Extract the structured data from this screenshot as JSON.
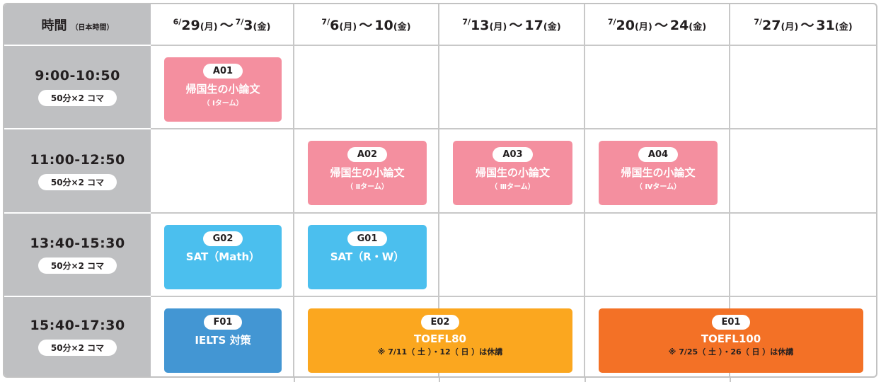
{
  "header": {
    "time_label": "時間",
    "time_note": "（日本時間）",
    "weeks": [
      {
        "m1": "6/",
        "d1": "29",
        "w1": "(月)",
        "sep": "～",
        "m2": "7/",
        "d2": "3",
        "w2": "(金)"
      },
      {
        "m1": "7/",
        "d1": "6",
        "w1": "(月)",
        "sep": "～",
        "m2": "",
        "d2": "10",
        "w2": "(金)"
      },
      {
        "m1": "7/",
        "d1": "13",
        "w1": "(月)",
        "sep": "～",
        "m2": "",
        "d2": "17",
        "w2": "(金)"
      },
      {
        "m1": "7/",
        "d1": "20",
        "w1": "(月)",
        "sep": "～",
        "m2": "",
        "d2": "24",
        "w2": "(金)"
      },
      {
        "m1": "7/",
        "d1": "27",
        "w1": "(月)",
        "sep": "～",
        "m2": "",
        "d2": "31",
        "w2": "(金)"
      }
    ]
  },
  "rows": [
    {
      "time": "9:00-10:50",
      "duration": "50分×2 コマ"
    },
    {
      "time": "11:00-12:50",
      "duration": "50分×2 コマ"
    },
    {
      "time": "13:40-15:30",
      "duration": "50分×2 コマ"
    },
    {
      "time": "15:40-17:30",
      "duration": "50分×2 コマ"
    }
  ],
  "colors": {
    "pink": "#f48f9f",
    "light_blue": "#4bbfee",
    "blue": "#4396d3",
    "yellow": "#fba71f",
    "orange": "#f37126",
    "side": "#bfc0c2"
  },
  "courses": [
    {
      "code": "A01",
      "title": "帰国生の小論文",
      "sub": "（ Ⅰターム）",
      "color": "pink"
    },
    {
      "code": "A02",
      "title": "帰国生の小論文",
      "sub": "（ Ⅱターム）",
      "color": "pink"
    },
    {
      "code": "A03",
      "title": "帰国生の小論文",
      "sub": "（ Ⅲターム）",
      "color": "pink"
    },
    {
      "code": "A04",
      "title": "帰国生の小論文",
      "sub": "（ Ⅳターム）",
      "color": "pink"
    },
    {
      "code": "G02",
      "title": "SAT（Math）",
      "color": "light_blue"
    },
    {
      "code": "G01",
      "title": "SAT（R・W）",
      "color": "light_blue"
    },
    {
      "code": "F01",
      "title": "IELTS 対策",
      "color": "blue"
    },
    {
      "code": "E02",
      "title": "TOEFL80",
      "note": "※ 7/11（ 土 ）・12（ 日 ）は休講",
      "color": "yellow"
    },
    {
      "code": "E01",
      "title": "TOEFL100",
      "note": "※ 7/25（ 土 ）・26（ 日 ）は休講",
      "color": "orange"
    }
  ]
}
